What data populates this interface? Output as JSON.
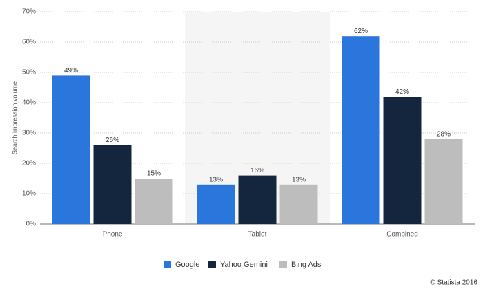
{
  "chart_data": {
    "type": "bar",
    "y_label": "Search impression volume",
    "categories": [
      "Phone",
      "Tablet",
      "Combined"
    ],
    "series": [
      {
        "name": "Google",
        "color": "#2a76dd",
        "values": [
          49,
          13,
          62
        ],
        "value_labels": [
          "49%",
          "13%",
          "62%"
        ]
      },
      {
        "name": "Yahoo Gemini",
        "color": "#13263d",
        "values": [
          26,
          16,
          42
        ],
        "value_labels": [
          "26%",
          "16%",
          "42%"
        ]
      },
      {
        "name": "Bing Ads",
        "color": "#bdbdbd",
        "values": [
          15,
          13,
          28
        ],
        "value_labels": [
          "15%",
          "13%",
          "28%"
        ]
      }
    ],
    "ylim": [
      0,
      70
    ],
    "yticks": [
      {
        "value": 0,
        "label": "0%"
      },
      {
        "value": 10,
        "label": "10%"
      },
      {
        "value": 20,
        "label": "20%"
      },
      {
        "value": 30,
        "label": "30%"
      },
      {
        "value": 40,
        "label": "40%"
      },
      {
        "value": 50,
        "label": "50%"
      },
      {
        "value": 60,
        "label": "60%"
      },
      {
        "value": 70,
        "label": "70%"
      }
    ],
    "grid": true,
    "legend": "bottom",
    "credit": "© Statista 2016"
  }
}
